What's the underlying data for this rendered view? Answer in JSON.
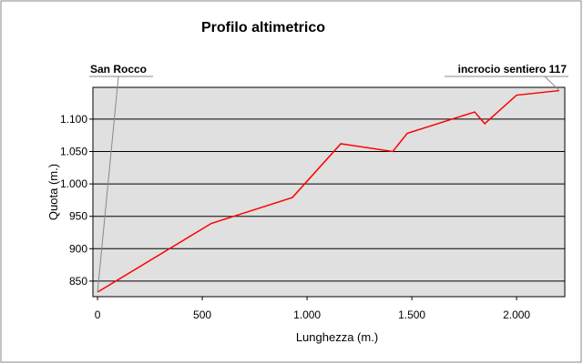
{
  "chart_data": {
    "type": "line",
    "title": "Profilo altimetrico",
    "x_label": "Lunghezza (m.)",
    "y_label": "Quota (m.)",
    "annotations": [
      "San Rocco",
      "incrocio sentiero 117"
    ],
    "x": [
      0,
      543,
      930,
      1161,
      1409,
      1478,
      1800,
      1848,
      2000,
      2204
    ],
    "series": [
      {
        "name": "Quota",
        "color": "#ff0000",
        "values": [
          833,
          939,
          979,
          1062,
          1050,
          1078,
          1111,
          1093,
          1137,
          1144
        ]
      }
    ],
    "xlim": [
      -22,
      2230
    ],
    "ylim": [
      826,
      1149
    ],
    "xticks": [
      0,
      500,
      {
        "value": 1000,
        "label": "1.000"
      },
      {
        "value": 1500,
        "label": "1.500"
      },
      {
        "value": 2000,
        "label": "2.000"
      }
    ],
    "yticks": [
      850,
      900,
      950,
      {
        "value": 1000,
        "label": "1.000"
      },
      {
        "value": 1050,
        "label": "1.050"
      },
      {
        "value": 1100,
        "label": "1.100"
      }
    ],
    "grid": true,
    "background": "#e0e0e0"
  }
}
